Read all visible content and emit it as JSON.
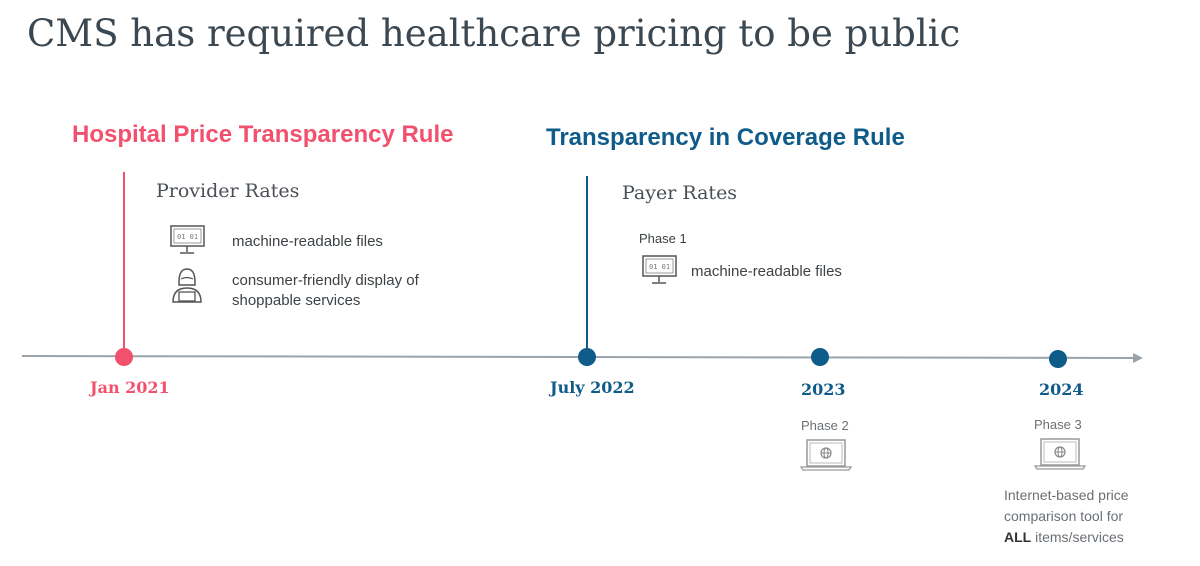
{
  "title": "CMS has required healthcare pricing to be public",
  "colors": {
    "hospital": "#f2516e",
    "coverage": "#0f5b8a",
    "axis": "#9aa3aa"
  },
  "hospital": {
    "rule": "Hospital Price Transparency Rule",
    "subtitle": "Provider Rates",
    "items": [
      {
        "icon": "monitor-binary-icon",
        "text": "machine-readable files"
      },
      {
        "icon": "person-laptop-icon",
        "text": "consumer-friendly display of shoppable services"
      }
    ],
    "date": "Jan 2021"
  },
  "coverage": {
    "rule": "Transparency in Coverage Rule",
    "subtitle": "Payer Rates",
    "phase1": {
      "label": "Phase 1",
      "icon": "monitor-binary-icon",
      "text": "machine-readable files"
    },
    "date": "July 2022"
  },
  "milestones": [
    {
      "date": "2023",
      "phase": "Phase 2",
      "icon": "laptop-globe-icon"
    },
    {
      "date": "2024",
      "phase": "Phase 3",
      "icon": "laptop-globe-icon",
      "text_bold": "ALL",
      "text_before": "Internet-based price comparison tool for",
      "text_after": "items/services"
    }
  ]
}
